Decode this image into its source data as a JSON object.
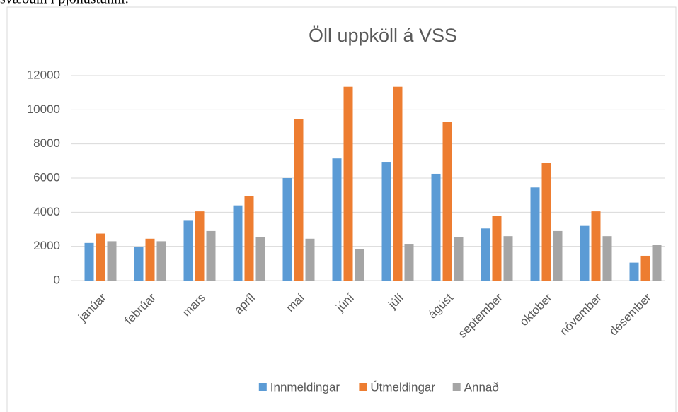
{
  "caption": "svæðum í þjónustunni.",
  "chart_data": {
    "type": "bar",
    "title": "Öll uppköll á VSS",
    "categories": [
      "janúar",
      "febrúar",
      "mars",
      "apríl",
      "maí",
      "júní",
      "júlí",
      "ágúst",
      "september",
      "oktober",
      "nóvember",
      "desember"
    ],
    "series": [
      {
        "name": "Innmeldingar",
        "color": "#5b9bd5",
        "values": [
          2200,
          1950,
          3500,
          4400,
          6000,
          7150,
          6950,
          6250,
          3050,
          5450,
          3200,
          1050
        ]
      },
      {
        "name": "Útmeldingar",
        "color": "#ed7d31",
        "values": [
          2750,
          2450,
          4050,
          4950,
          9450,
          11350,
          11350,
          9300,
          3800,
          6900,
          4050,
          1450
        ]
      },
      {
        "name": "Annað",
        "color": "#a5a5a5",
        "values": [
          2300,
          2300,
          2900,
          2550,
          2450,
          1850,
          2150,
          2550,
          2600,
          2900,
          2600,
          2100
        ]
      }
    ],
    "ylim": [
      0,
      12000
    ],
    "yticks": [
      0,
      2000,
      4000,
      6000,
      8000,
      10000,
      12000
    ],
    "grid": true,
    "legend": "bottom"
  }
}
